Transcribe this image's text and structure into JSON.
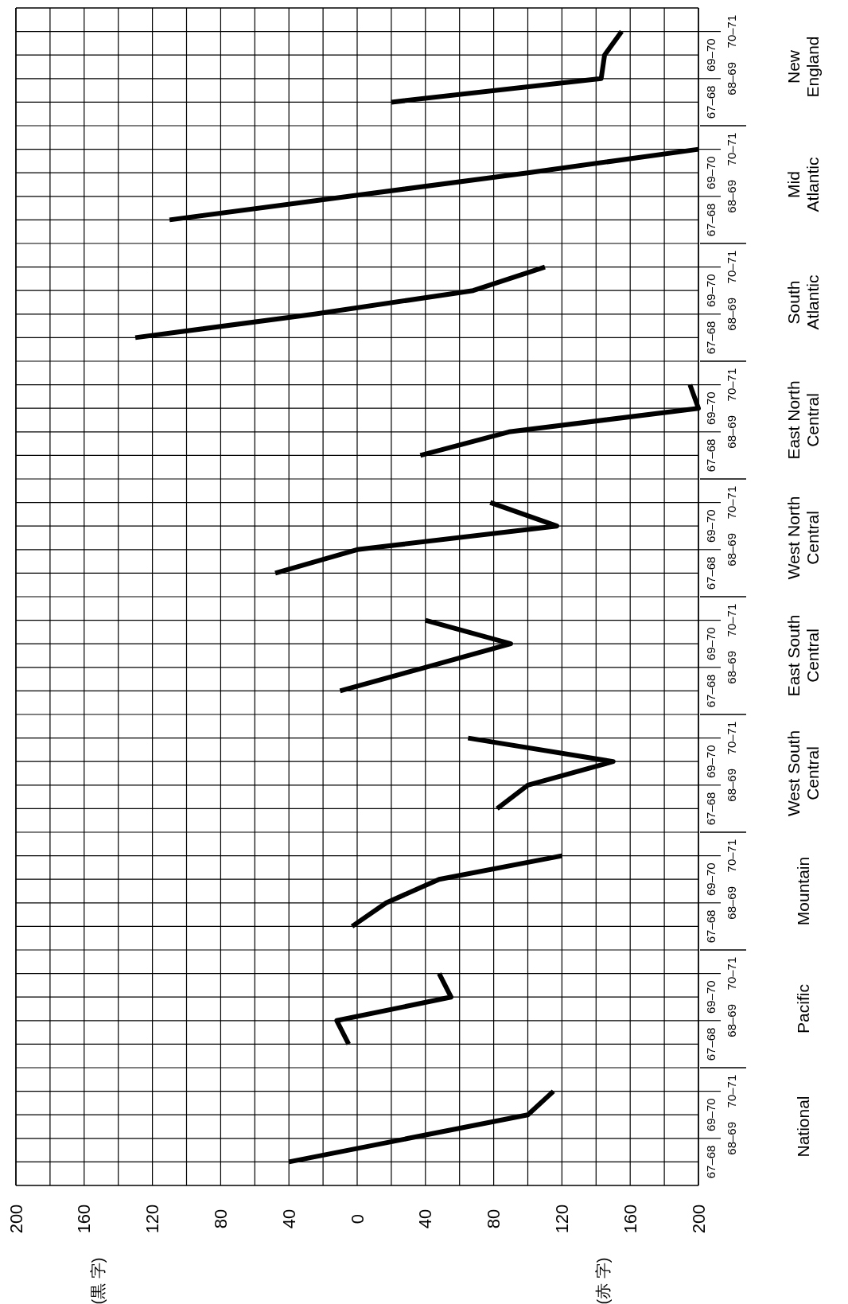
{
  "chart_data": {
    "type": "line",
    "orientation": "horizontal",
    "categories": [
      "70–71",
      "69–70",
      "68–69",
      "67–68",
      null,
      "70–71",
      "69–70",
      "68–69",
      "67–68",
      null,
      "70–71",
      "69–70",
      "68–69",
      "67–68",
      null,
      "70–71",
      "69–70",
      "68–69",
      "67–68",
      null,
      "70–71",
      "69–70",
      "68–69",
      "67–68",
      null,
      "70–71",
      "69–70",
      "68–69",
      "67–68",
      null,
      "70–71",
      "69–70",
      "68–69",
      "67–68",
      null,
      "70–71",
      "69–70",
      "68–69",
      "67–68",
      null,
      "70–71",
      "69–70",
      "68–69",
      "67–68",
      null,
      "70–71",
      "69–70",
      "68–69",
      "67–68"
    ],
    "series": [
      {
        "name": "New England",
        "color": "#000000",
        "values": [
          -155,
          -145,
          -143,
          -20,
          null,
          null,
          null,
          null,
          null,
          null,
          null,
          null,
          null,
          null,
          null,
          null,
          null,
          null,
          null,
          null,
          null,
          null,
          null,
          null,
          null,
          null,
          null,
          null,
          null,
          null,
          null,
          null,
          null,
          null,
          null,
          null,
          null,
          null,
          null,
          null,
          null,
          null,
          null,
          null,
          null,
          null,
          null,
          null,
          null
        ]
      },
      {
        "name": "Mid Atlantic",
        "color": "#000000",
        "values": [
          null,
          null,
          null,
          null,
          null,
          -200,
          -100,
          5,
          110,
          null,
          null,
          null,
          null,
          null,
          null,
          null,
          null,
          null,
          null,
          null,
          null,
          null,
          null,
          null,
          null,
          null,
          null,
          null,
          null,
          null,
          null,
          null,
          null,
          null,
          null,
          null,
          null,
          null,
          null,
          null,
          null,
          null,
          null,
          null,
          null,
          null,
          null,
          null,
          null
        ]
      },
      {
        "name": "South Atlantic",
        "color": "#000000",
        "values": [
          null,
          null,
          null,
          null,
          null,
          null,
          null,
          null,
          null,
          null,
          -110,
          -68,
          25,
          130,
          null,
          null,
          null,
          null,
          null,
          null,
          null,
          null,
          null,
          null,
          null,
          null,
          null,
          null,
          null,
          null,
          null,
          null,
          null,
          null,
          null,
          null,
          null,
          null,
          null,
          null,
          null,
          null,
          null,
          null,
          null,
          null,
          null,
          null,
          null
        ]
      },
      {
        "name": "East North Central",
        "color": "#000000",
        "values": [
          null,
          null,
          null,
          null,
          null,
          null,
          null,
          null,
          null,
          null,
          null,
          null,
          null,
          null,
          null,
          -195,
          -200,
          -89,
          -37,
          null,
          null,
          null,
          null,
          null,
          null,
          null,
          null,
          null,
          null,
          null,
          null,
          null,
          null,
          null,
          null,
          null,
          null,
          null,
          null,
          null,
          null,
          null,
          null,
          null,
          null,
          null,
          null,
          null,
          null
        ]
      },
      {
        "name": "West North Central",
        "color": "#000000",
        "values": [
          null,
          null,
          null,
          null,
          null,
          null,
          null,
          null,
          null,
          null,
          null,
          null,
          null,
          null,
          null,
          null,
          null,
          null,
          null,
          null,
          -78,
          -117,
          0,
          48,
          null,
          null,
          null,
          null,
          null,
          null,
          null,
          null,
          null,
          null,
          null,
          null,
          null,
          null,
          null,
          null,
          null,
          null,
          null,
          null,
          null,
          null,
          null,
          null,
          null
        ]
      },
      {
        "name": "East South Central",
        "color": "#000000",
        "values": [
          null,
          null,
          null,
          null,
          null,
          null,
          null,
          null,
          null,
          null,
          null,
          null,
          null,
          null,
          null,
          null,
          null,
          null,
          null,
          null,
          null,
          null,
          null,
          null,
          null,
          -40,
          -90,
          -40,
          10,
          null,
          null,
          null,
          null,
          null,
          null,
          null,
          null,
          null,
          null,
          null,
          null,
          null,
          null,
          null,
          null,
          null,
          null,
          null,
          null
        ]
      },
      {
        "name": "West South Central",
        "color": "#000000",
        "values": [
          null,
          null,
          null,
          null,
          null,
          null,
          null,
          null,
          null,
          null,
          null,
          null,
          null,
          null,
          null,
          null,
          null,
          null,
          null,
          null,
          null,
          null,
          null,
          null,
          null,
          null,
          null,
          null,
          null,
          null,
          -65,
          -150,
          -100,
          -82,
          null,
          null,
          null,
          null,
          null,
          null,
          null,
          null,
          null,
          null,
          null,
          null,
          null,
          null,
          null
        ]
      },
      {
        "name": "Mountain",
        "color": "#000000",
        "values": [
          null,
          null,
          null,
          null,
          null,
          null,
          null,
          null,
          null,
          null,
          null,
          null,
          null,
          null,
          null,
          null,
          null,
          null,
          null,
          null,
          null,
          null,
          null,
          null,
          null,
          null,
          null,
          null,
          null,
          null,
          null,
          null,
          null,
          null,
          null,
          -120,
          -48,
          -17,
          3,
          null,
          null,
          null,
          null,
          null,
          null,
          null,
          null,
          null,
          null
        ]
      },
      {
        "name": "Pacific",
        "color": "#000000",
        "values": [
          null,
          null,
          null,
          null,
          null,
          null,
          null,
          null,
          null,
          null,
          null,
          null,
          null,
          null,
          null,
          null,
          null,
          null,
          null,
          null,
          null,
          null,
          null,
          null,
          null,
          null,
          null,
          null,
          null,
          null,
          null,
          null,
          null,
          null,
          null,
          null,
          null,
          null,
          null,
          null,
          -48,
          -55,
          12,
          5,
          null,
          null,
          null,
          null,
          null
        ]
      },
      {
        "name": "National",
        "color": "#000000",
        "values": [
          null,
          null,
          null,
          null,
          null,
          null,
          null,
          null,
          null,
          null,
          null,
          null,
          null,
          null,
          null,
          null,
          null,
          null,
          null,
          null,
          null,
          null,
          null,
          null,
          null,
          null,
          null,
          null,
          null,
          null,
          null,
          null,
          null,
          null,
          null,
          null,
          null,
          null,
          null,
          null,
          null,
          null,
          null,
          null,
          null,
          -115,
          -100,
          -30,
          40
        ]
      }
    ],
    "xlim": [
      200,
      -200
    ],
    "xticks": [
      {
        "value": 200,
        "label": "200"
      },
      {
        "value": 180,
        "label": null
      },
      {
        "value": 160,
        "label": "160"
      },
      {
        "value": 140,
        "label": null
      },
      {
        "value": 120,
        "label": "120"
      },
      {
        "value": 100,
        "label": null
      },
      {
        "value": 80,
        "label": "80"
      },
      {
        "value": 60,
        "label": null
      },
      {
        "value": 40,
        "label": "40"
      },
      {
        "value": 20,
        "label": null
      },
      0,
      {
        "value": -20,
        "label": null
      },
      {
        "value": -40,
        "label": "40"
      },
      {
        "value": -60,
        "label": null
      },
      {
        "value": -80,
        "label": "80"
      },
      {
        "value": -100,
        "label": null
      },
      {
        "value": -120,
        "label": "120"
      },
      {
        "value": -140,
        "label": null
      },
      {
        "value": -160,
        "label": "160"
      },
      {
        "value": -180,
        "label": null
      },
      {
        "value": -200,
        "label": "200"
      }
    ],
    "grid": true,
    "annotations": [
      "(黒 字)",
      "(赤 字)"
    ]
  }
}
